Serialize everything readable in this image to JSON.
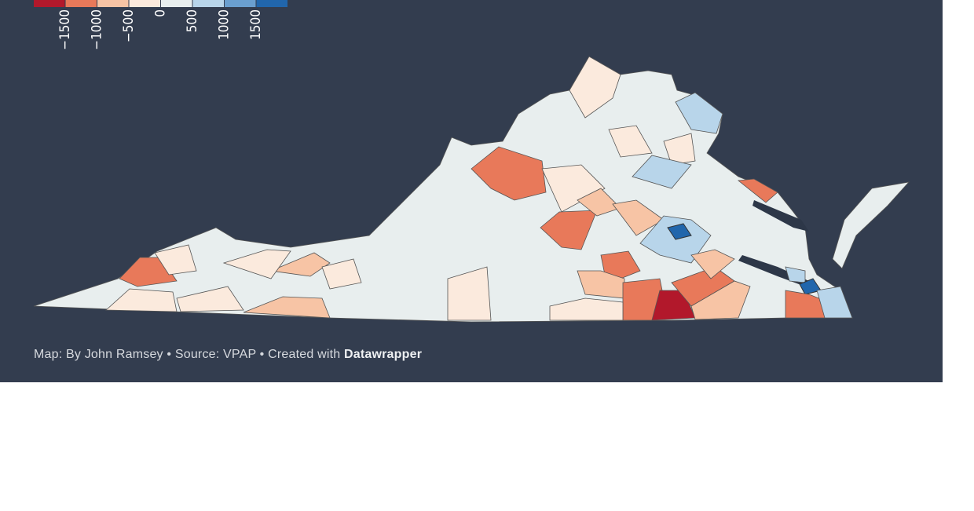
{
  "legend": {
    "colors": [
      "#b2182b",
      "#e8795a",
      "#f7c4a5",
      "#fbeadd",
      "#e8eeee",
      "#b8d5ea",
      "#6a9fcf",
      "#2166ac"
    ],
    "labels": [
      "−1500",
      "−1000",
      "−500",
      "0",
      "500",
      "1000",
      "1500"
    ]
  },
  "footer": {
    "text": "Map: By John Ramsey • Source: VPAP • Created with ",
    "brand": "Datawrapper"
  }
}
